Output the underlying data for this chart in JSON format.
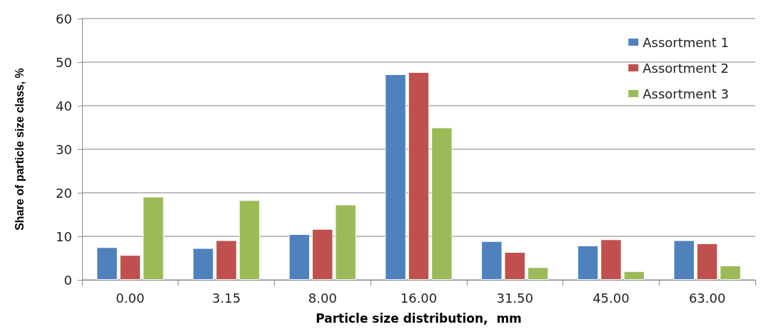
{
  "chart_data": {
    "type": "bar",
    "xlabel": "Particle size distribution,  mm",
    "ylabel": "Share of particle size class, %",
    "categories": [
      "0.00",
      "3.15",
      "8.00",
      "16.00",
      "31.50",
      "45.00",
      "63.00"
    ],
    "series": [
      {
        "name": "Assortment 1",
        "color": "#4f81bd",
        "values": [
          7.5,
          7.3,
          10.5,
          47.2,
          8.9,
          7.9,
          9.1
        ]
      },
      {
        "name": "Assortment 2",
        "color": "#c0504d",
        "values": [
          5.7,
          9.1,
          11.7,
          47.7,
          6.4,
          9.3,
          8.4
        ]
      },
      {
        "name": "Assortment 3",
        "color": "#9bbb59",
        "values": [
          19.1,
          18.3,
          17.3,
          35.0,
          2.9,
          2.0,
          3.3
        ]
      }
    ],
    "ylim": [
      0,
      60
    ],
    "yticks": [
      0,
      10,
      20,
      30,
      40,
      50,
      60
    ],
    "grid": "y",
    "legend": "top right"
  }
}
